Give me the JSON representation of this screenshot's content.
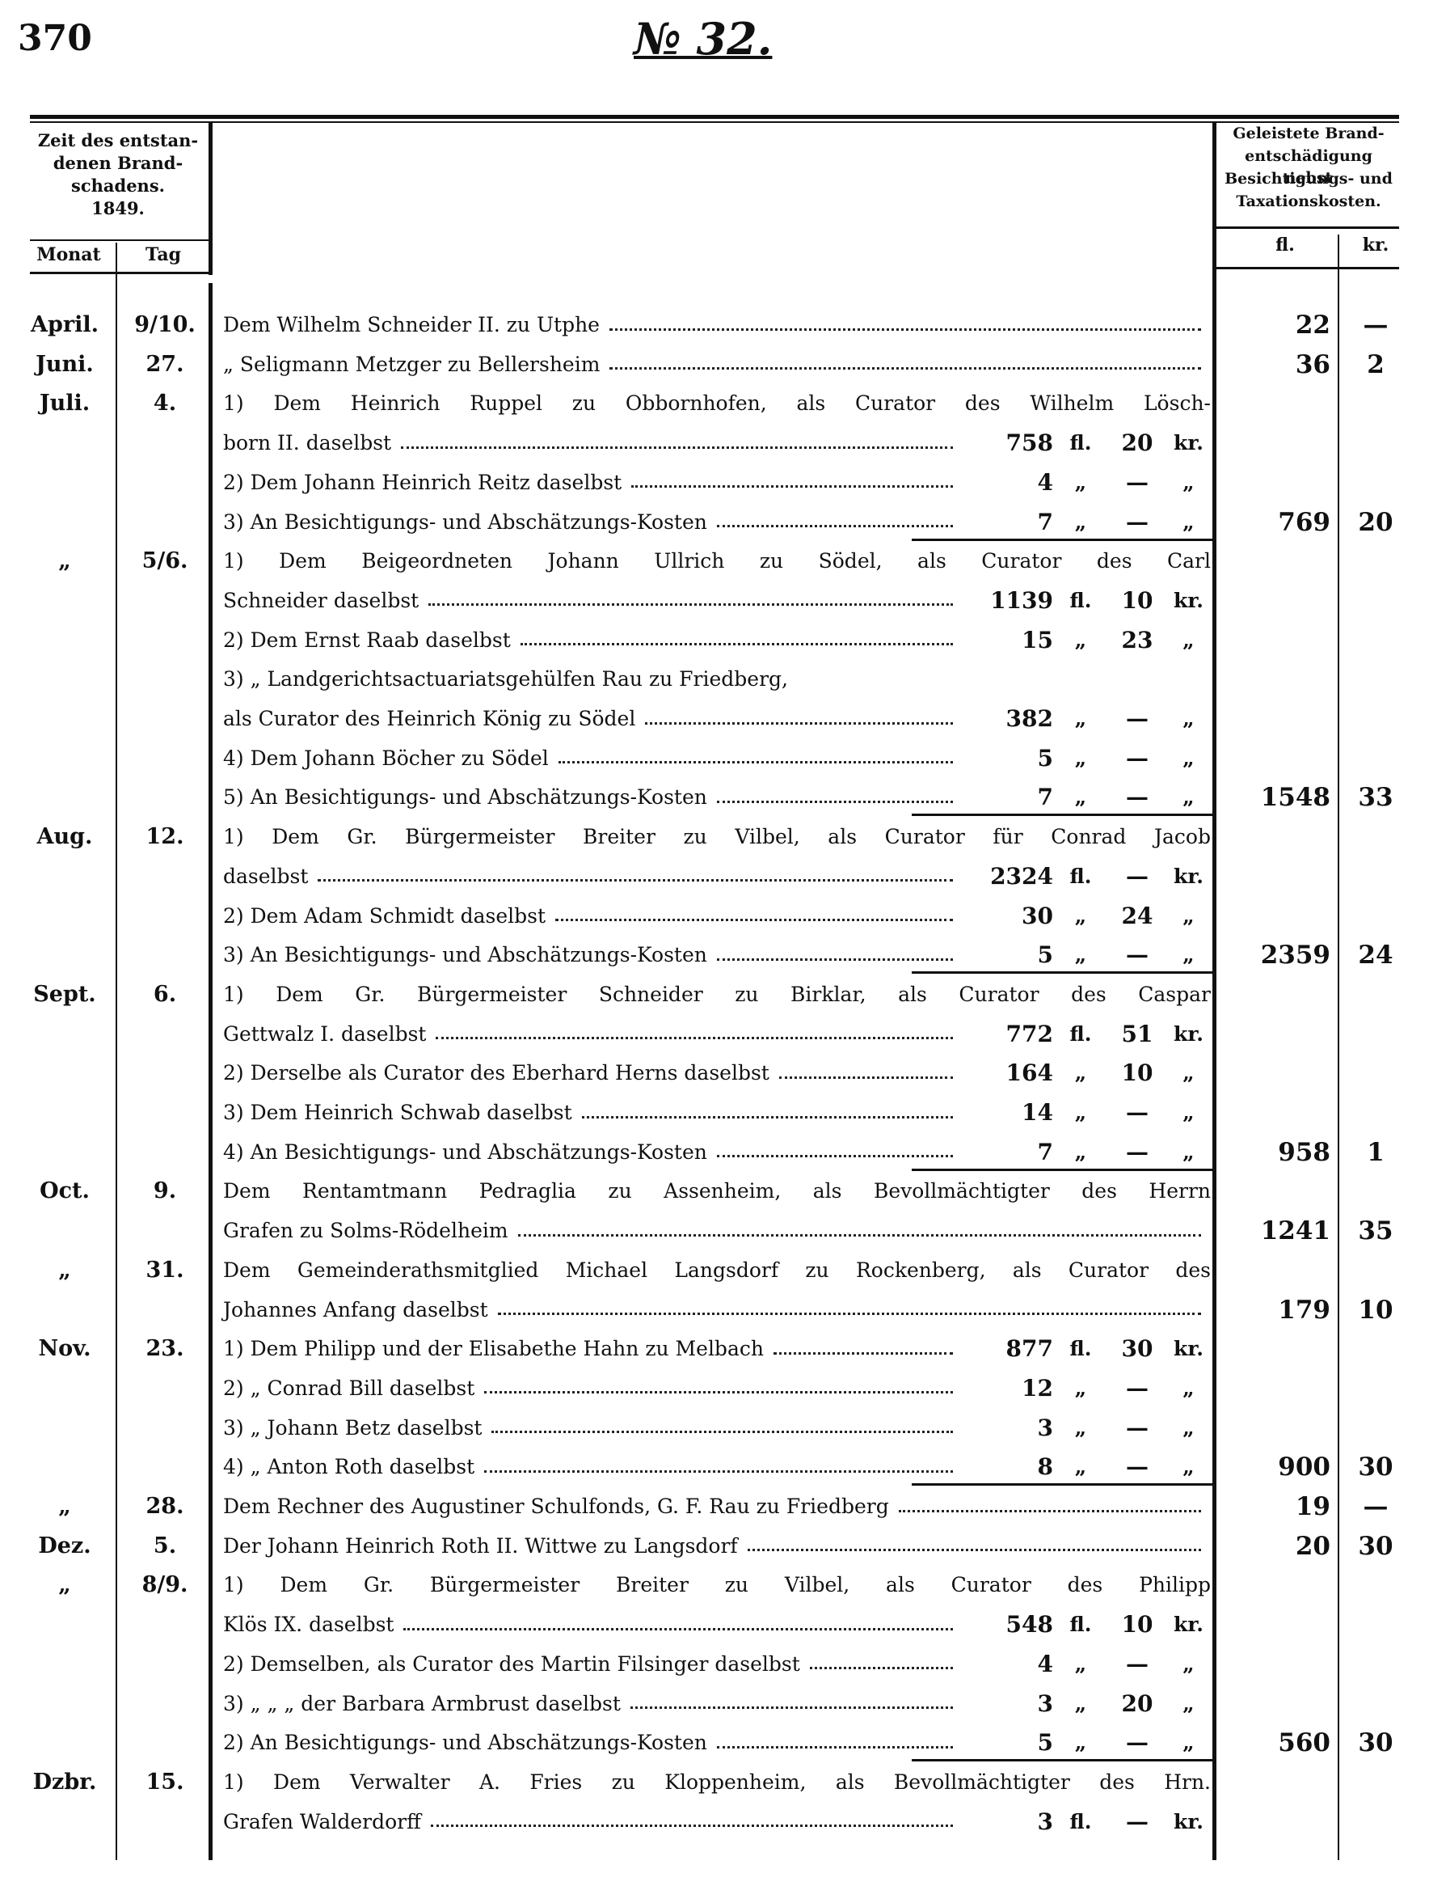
{
  "header": {
    "page_number": "370",
    "title": "№ 32."
  },
  "columns": {
    "time": [
      "Zeit des entstan-",
      "denen Brand-",
      "schadens.",
      "1849."
    ],
    "month": "Monat",
    "day": "Tag",
    "paid": [
      "Geleistete Brand-",
      "entschädigung nebst",
      "Besichtigungs- und",
      "Taxationskosten."
    ],
    "fl": "fl.",
    "kr": "kr."
  },
  "entries": [
    {
      "month": "April.",
      "day": "9/10.",
      "lines": [
        {
          "text": "Dem Wilhelm Schneider II. zu Utphe"
        }
      ],
      "total_fl": "22",
      "total_kr": "—"
    },
    {
      "month": "Juni.",
      "day": "27.",
      "lines": [
        {
          "text": "„ Seligmann Metzger zu Bellersheim"
        }
      ],
      "total_fl": "36",
      "total_kr": "2"
    },
    {
      "month": "Juli.",
      "day": "4.",
      "lines": [
        {
          "text": "1) Dem Heinrich Ruppel zu Obbornhofen, als Curator des Wilhelm Lösch-"
        },
        {
          "text": "born II. daselbst",
          "amount": "758",
          "fl": "fl.",
          "kr": "20",
          "kr_unit": "kr."
        },
        {
          "text": "2) Dem Johann Heinrich Reitz daselbst",
          "amount": "4",
          "fl": "„",
          "kr": "—",
          "kr_unit": "„"
        },
        {
          "text": "3) An Besichtigungs- und Abschätzungs-Kosten",
          "amount": "7",
          "fl": "„",
          "kr": "—",
          "kr_unit": "„"
        }
      ],
      "total_fl": "769",
      "total_kr": "20"
    },
    {
      "month": "„",
      "day": "5/6.",
      "lines": [
        {
          "text": "1) Dem Beigeordneten Johann Ullrich zu Södel, als Curator des Carl"
        },
        {
          "text": "Schneider daselbst",
          "amount": "1139",
          "fl": "fl.",
          "kr": "10",
          "kr_unit": "kr."
        },
        {
          "text": "2) Dem Ernst Raab daselbst",
          "amount": "15",
          "fl": "„",
          "kr": "23",
          "kr_unit": "„"
        },
        {
          "text": "3) „ Landgerichtsactuariatsgehülfen Rau zu Friedberg,"
        },
        {
          "text": "als Curator des Heinrich König zu Södel",
          "amount": "382",
          "fl": "„",
          "kr": "—",
          "kr_unit": "„"
        },
        {
          "text": "4) Dem Johann Böcher zu Södel",
          "amount": "5",
          "fl": "„",
          "kr": "—",
          "kr_unit": "„"
        },
        {
          "text": "5) An Besichtigungs- und Abschätzungs-Kosten",
          "amount": "7",
          "fl": "„",
          "kr": "—",
          "kr_unit": "„"
        }
      ],
      "total_fl": "1548",
      "total_kr": "33"
    },
    {
      "month": "Aug.",
      "day": "12.",
      "lines": [
        {
          "text": "1) Dem Gr. Bürgermeister Breiter zu Vilbel, als Curator für Conrad Jacob"
        },
        {
          "text": "daselbst",
          "amount": "2324",
          "fl": "fl.",
          "kr": "—",
          "kr_unit": "kr."
        },
        {
          "text": "2) Dem Adam Schmidt daselbst",
          "amount": "30",
          "fl": "„",
          "kr": "24",
          "kr_unit": "„"
        },
        {
          "text": "3) An Besichtigungs- und Abschätzungs-Kosten",
          "amount": "5",
          "fl": "„",
          "kr": "—",
          "kr_unit": "„"
        }
      ],
      "total_fl": "2359",
      "total_kr": "24"
    },
    {
      "month": "Sept.",
      "day": "6.",
      "lines": [
        {
          "text": "1) Dem Gr. Bürgermeister Schneider zu Birklar, als Curator des Caspar"
        },
        {
          "text": "Gettwalz I. daselbst",
          "amount": "772",
          "fl": "fl.",
          "kr": "51",
          "kr_unit": "kr."
        },
        {
          "text": "2) Derselbe als Curator des Eberhard Herns daselbst",
          "amount": "164",
          "fl": "„",
          "kr": "10",
          "kr_unit": "„"
        },
        {
          "text": "3) Dem Heinrich Schwab daselbst",
          "amount": "14",
          "fl": "„",
          "kr": "—",
          "kr_unit": "„"
        },
        {
          "text": "4) An Besichtigungs- und Abschätzungs-Kosten",
          "amount": "7",
          "fl": "„",
          "kr": "—",
          "kr_unit": "„"
        }
      ],
      "total_fl": "958",
      "total_kr": "1"
    },
    {
      "month": "Oct.",
      "day": "9.",
      "lines": [
        {
          "text": "Dem Rentamtmann Pedraglia zu Assenheim, als Bevollmächtigter des Herrn"
        },
        {
          "text": "Grafen zu Solms-Rödelheim"
        }
      ],
      "total_fl": "1241",
      "total_kr": "35"
    },
    {
      "month": "„",
      "day": "31.",
      "lines": [
        {
          "text": "Dem Gemeinderathsmitglied Michael Langsdorf zu Rockenberg, als Curator des"
        },
        {
          "text": "Johannes Anfang daselbst"
        }
      ],
      "total_fl": "179",
      "total_kr": "10"
    },
    {
      "month": "Nov.",
      "day": "23.",
      "lines": [
        {
          "text": "1) Dem Philipp und der Elisabethe Hahn zu Melbach",
          "amount": "877",
          "fl": "fl.",
          "kr": "30",
          "kr_unit": "kr."
        },
        {
          "text": "2) „ Conrad Bill daselbst",
          "amount": "12",
          "fl": "„",
          "kr": "—",
          "kr_unit": "„"
        },
        {
          "text": "3) „ Johann Betz daselbst",
          "amount": "3",
          "fl": "„",
          "kr": "—",
          "kr_unit": "„"
        },
        {
          "text": "4) „ Anton Roth daselbst",
          "amount": "8",
          "fl": "„",
          "kr": "—",
          "kr_unit": "„"
        }
      ],
      "total_fl": "900",
      "total_kr": "30"
    },
    {
      "month": "„",
      "day": "28.",
      "lines": [
        {
          "text": "Dem Rechner des Augustiner Schulfonds, G. F. Rau zu Friedberg"
        }
      ],
      "total_fl": "19",
      "total_kr": "—"
    },
    {
      "month": "Dez.",
      "day": "5.",
      "lines": [
        {
          "text": "Der Johann Heinrich Roth II. Wittwe zu Langsdorf"
        }
      ],
      "total_fl": "20",
      "total_kr": "30"
    },
    {
      "month": "„",
      "day": "8/9.",
      "lines": [
        {
          "text": "1) Dem Gr. Bürgermeister Breiter zu Vilbel, als Curator des Philipp"
        },
        {
          "text": "Klös IX. daselbst",
          "amount": "548",
          "fl": "fl.",
          "kr": "10",
          "kr_unit": "kr."
        },
        {
          "text": "2) Demselben, als Curator des Martin Filsinger daselbst",
          "amount": "4",
          "fl": "„",
          "kr": "—",
          "kr_unit": "„"
        },
        {
          "text": "3) „ „ „ der Barbara Armbrust daselbst",
          "amount": "3",
          "fl": "„",
          "kr": "20",
          "kr_unit": "„"
        },
        {
          "text": "2) An Besichtigungs- und Abschätzungs-Kosten",
          "amount": "5",
          "fl": "„",
          "kr": "—",
          "kr_unit": "„"
        }
      ],
      "total_fl": "560",
      "total_kr": "30"
    },
    {
      "month": "Dzbr.",
      "day": "15.",
      "lines": [
        {
          "text": "1) Dem Verwalter A. Fries zu Kloppenheim, als Bevollmächtigter des Hrn."
        },
        {
          "text": "Grafen Walderdorff",
          "amount": "3",
          "fl": "fl.",
          "kr": "—",
          "kr_unit": "kr."
        }
      ]
    }
  ]
}
